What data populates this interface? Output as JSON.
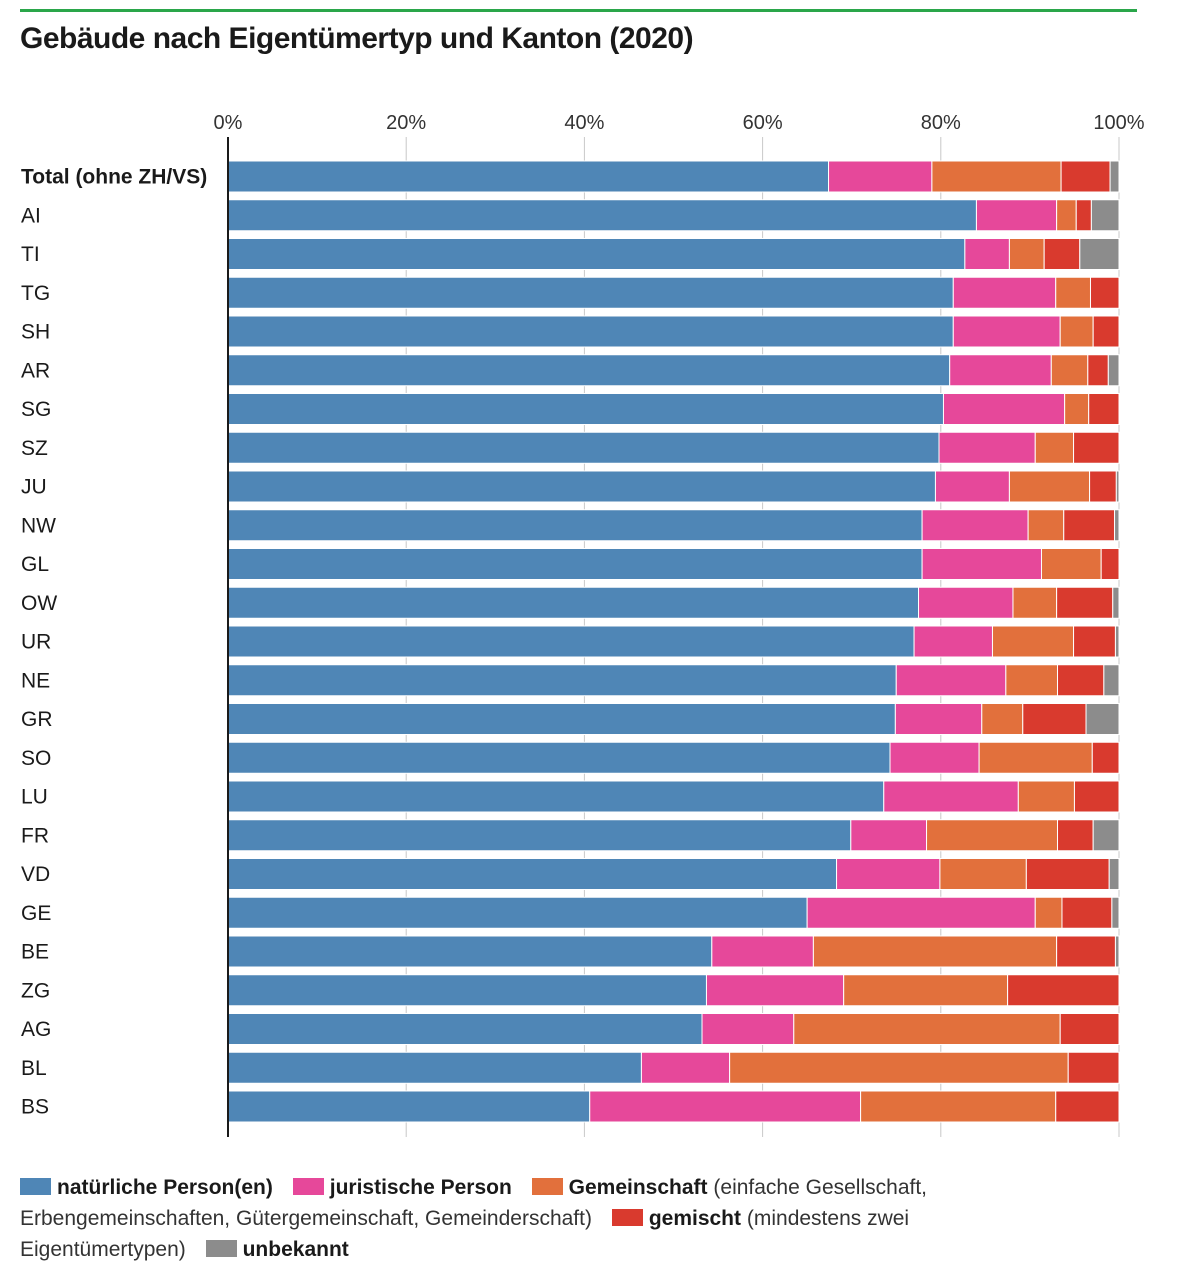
{
  "title": "Gebäude nach Eigentümertyp und Kanton (2020)",
  "colors": {
    "natuerlich": "#4f86b6",
    "juristisch": "#e6489a",
    "gemeinschaft": "#e2703c",
    "gemischt": "#d93a2e",
    "unbekannt": "#8c8c8c"
  },
  "legend": {
    "natuerlich": "natürliche Person(en)",
    "juristisch": "juristische Person",
    "gemeinschaft": "Gemeinschaft",
    "gemeinschaft_note_a": "(einfache Gesellschaft,",
    "gemeinschaft_note_b": "Erbengemeinschaften, Gütergemeinschaft, Gemeinderschaft)",
    "gemischt": "gemischt",
    "gemischt_note_a": "(mindestens zwei",
    "gemischt_note_b": "Eigentümertypen)",
    "unbekannt": "unbekannt"
  },
  "chart_data": {
    "type": "bar",
    "orientation": "horizontal",
    "stacked": true,
    "title": "Gebäude nach Eigentümertyp und Kanton (2020)",
    "x_ticks": [
      "0%",
      "20%",
      "40%",
      "60%",
      "80%",
      "100%"
    ],
    "xlim": [
      0,
      100
    ],
    "grid": true,
    "legend_position": "bottom",
    "categories": [
      "Total (ohne ZH/VS)",
      "AI",
      "TI",
      "TG",
      "SH",
      "AR",
      "SG",
      "SZ",
      "JU",
      "NW",
      "GL",
      "OW",
      "UR",
      "NE",
      "GR",
      "SO",
      "LU",
      "FR",
      "VD",
      "GE",
      "BE",
      "ZG",
      "AG",
      "BL",
      "BS"
    ],
    "series": [
      {
        "name": "natürliche Person(en)",
        "values": [
          67.4,
          84.0,
          82.7,
          81.4,
          81.4,
          81.0,
          80.3,
          79.8,
          79.4,
          77.9,
          77.9,
          77.5,
          77.0,
          75.0,
          74.9,
          74.3,
          73.6,
          69.9,
          68.3,
          65.0,
          54.3,
          53.7,
          53.2,
          46.4,
          40.6
        ]
      },
      {
        "name": "juristische Person",
        "values": [
          11.6,
          9.0,
          5.0,
          11.5,
          12.0,
          11.4,
          13.6,
          10.8,
          8.3,
          11.9,
          13.4,
          10.6,
          8.8,
          12.3,
          9.7,
          10.0,
          15.1,
          8.5,
          11.6,
          25.6,
          11.4,
          15.4,
          10.3,
          9.9,
          30.4
        ]
      },
      {
        "name": "Gemeinschaft",
        "values": [
          14.5,
          2.2,
          3.9,
          3.9,
          3.7,
          4.1,
          2.7,
          4.3,
          9.0,
          4.0,
          6.7,
          4.9,
          9.1,
          5.8,
          4.6,
          12.7,
          6.3,
          14.7,
          9.7,
          3.0,
          27.3,
          18.4,
          29.9,
          38.0,
          21.9
        ]
      },
      {
        "name": "gemischt",
        "values": [
          5.5,
          1.7,
          4.0,
          3.2,
          2.9,
          2.3,
          3.4,
          5.1,
          3.0,
          5.7,
          2.0,
          6.3,
          4.7,
          5.2,
          7.1,
          3.0,
          5.0,
          4.0,
          9.3,
          5.6,
          6.6,
          12.5,
          6.6,
          5.7,
          7.1
        ]
      },
      {
        "name": "unbekannt",
        "values": [
          1.0,
          3.1,
          4.4,
          0.0,
          0.0,
          1.2,
          0.0,
          0.0,
          0.3,
          0.5,
          0.0,
          0.7,
          0.4,
          1.7,
          3.7,
          0.0,
          0.0,
          2.9,
          1.1,
          0.8,
          0.4,
          0.0,
          0.0,
          0.0,
          0.0
        ]
      }
    ]
  }
}
